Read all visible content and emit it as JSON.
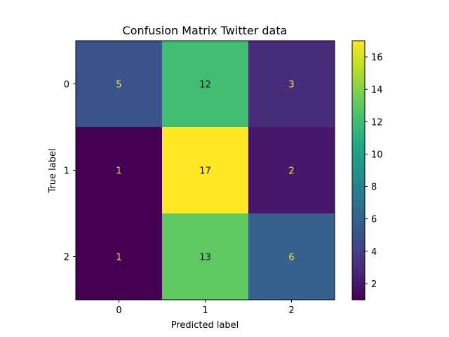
{
  "chart_data": {
    "type": "heatmap",
    "title": "Confusion Matrix Twitter data",
    "xlabel": "Predicted label",
    "ylabel": "True label",
    "x_categories": [
      "0",
      "1",
      "2"
    ],
    "y_categories": [
      "0",
      "1",
      "2"
    ],
    "matrix": [
      [
        5,
        12,
        3
      ],
      [
        1,
        17,
        2
      ],
      [
        1,
        13,
        6
      ]
    ],
    "colormap": "viridis",
    "colorbar": {
      "min": 1,
      "max": 17,
      "ticks": [
        2,
        4,
        6,
        8,
        10,
        12,
        14,
        16
      ],
      "tick_labels": [
        "2",
        "4",
        "6",
        "8",
        "10",
        "12",
        "14",
        "16"
      ]
    },
    "grid": false,
    "text_colors": {
      "dark_cell": "#fde725",
      "light_cell": "#1a1a1a"
    }
  }
}
